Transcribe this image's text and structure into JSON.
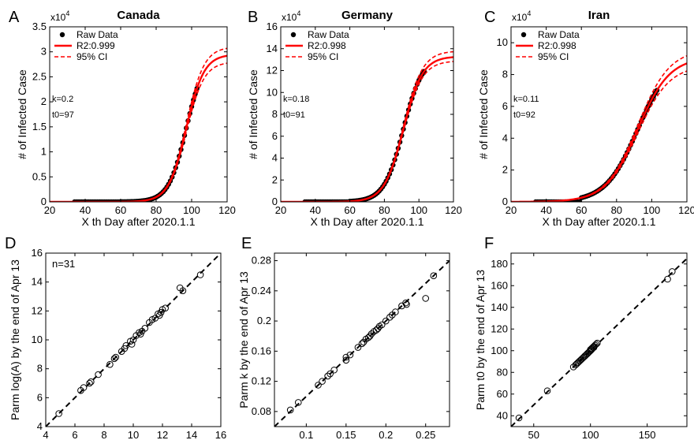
{
  "chart_data": [
    {
      "panel": "A",
      "type": "line",
      "title": "Canada",
      "xlabel": "X th Day after 2020.1.1",
      "ylabel": "# of Infected Case",
      "xlim": [
        20,
        120
      ],
      "ylim": [
        0,
        35000
      ],
      "xticks": [
        "20",
        "40",
        "60",
        "80",
        "100",
        "120"
      ],
      "yticks": [
        "0",
        "0.5",
        "1",
        "1.5",
        "2",
        "2.5",
        "3",
        "3.5"
      ],
      "y_multiplier_base": "x10",
      "y_multiplier_exp": "4",
      "legend": [
        "Raw Data",
        "R2:0.999",
        "95% CI"
      ],
      "legend_position": "top-left",
      "notes": [
        "k=0.2",
        "t0=97"
      ],
      "fit": {
        "A": 29500,
        "k": 0.2,
        "t0": 97
      },
      "ci_upper": {
        "A": 31000,
        "k": 0.2,
        "t0": 97
      },
      "ci_lower": {
        "A": 28000,
        "k": 0.2,
        "t0": 97
      },
      "raw_x_range": [
        34,
        103
      ],
      "colors": {
        "fit": "#ff0000",
        "raw": "#000000"
      }
    },
    {
      "panel": "B",
      "type": "line",
      "title": "Germany",
      "xlabel": "X th Day after 2020.1.1",
      "ylabel": "# of Infected Case",
      "xlim": [
        20,
        120
      ],
      "ylim": [
        0,
        160000
      ],
      "xticks": [
        "20",
        "40",
        "60",
        "80",
        "100",
        "120"
      ],
      "yticks": [
        "0",
        "2",
        "4",
        "6",
        "8",
        "10",
        "12",
        "14",
        "16"
      ],
      "y_multiplier_base": "x10",
      "y_multiplier_exp": "4",
      "legend": [
        "Raw Data",
        "R2:0.998",
        "95% CI"
      ],
      "legend_position": "top-left",
      "notes": [
        "k=0.18",
        "t0=91"
      ],
      "fit": {
        "A": 133000,
        "k": 0.18,
        "t0": 91
      },
      "ci_upper": {
        "A": 138000,
        "k": 0.18,
        "t0": 91
      },
      "ci_lower": {
        "A": 129000,
        "k": 0.18,
        "t0": 91
      },
      "raw_x_range": [
        34,
        103
      ],
      "colors": {
        "fit": "#ff0000",
        "raw": "#000000"
      }
    },
    {
      "panel": "C",
      "type": "line",
      "title": "Iran",
      "xlabel": "X th Day after 2020.1.1",
      "ylabel": "# of Infected Case",
      "xlim": [
        20,
        120
      ],
      "ylim": [
        0,
        110000
      ],
      "xticks": [
        "20",
        "40",
        "60",
        "80",
        "100",
        "120"
      ],
      "yticks": [
        "0",
        "2",
        "4",
        "6",
        "8",
        "10"
      ],
      "y_multiplier_base": "x10",
      "y_multiplier_exp": "4",
      "legend": [
        "Raw Data",
        "R2:0.998",
        "95% CI"
      ],
      "legend_position": "top-left",
      "notes": [
        "k=0.11",
        "t0=92"
      ],
      "fit": {
        "A": 91000,
        "k": 0.11,
        "t0": 92
      },
      "ci_upper": {
        "A": 96000,
        "k": 0.11,
        "t0": 92
      },
      "ci_lower": {
        "A": 86000,
        "k": 0.11,
        "t0": 92
      },
      "raw_x_range": [
        34,
        103
      ],
      "colors": {
        "fit": "#ff0000",
        "raw": "#000000"
      }
    },
    {
      "panel": "D",
      "type": "scatter",
      "xlabel": "Parm log(A) by the end of Apr 12",
      "ylabel": "Parm log(A) by the end of Apr 13",
      "xlim": [
        4,
        16
      ],
      "ylim": [
        4,
        16
      ],
      "xticks": [
        "4",
        "6",
        "8",
        "10",
        "12",
        "14",
        "16"
      ],
      "yticks": [
        "4",
        "6",
        "8",
        "10",
        "12",
        "14",
        "16"
      ],
      "notes": [
        "n=31"
      ],
      "x": [
        4.9,
        6.4,
        6.6,
        7.0,
        7.1,
        7.6,
        8.4,
        8.7,
        8.8,
        9.2,
        9.4,
        9.5,
        9.8,
        10.0,
        10.2,
        10.4,
        10.6,
        10.8,
        11.1,
        11.3,
        11.5,
        11.7,
        11.9,
        12.0,
        12.2,
        13.2,
        13.4,
        14.6,
        9.9,
        10.5,
        11.8
      ],
      "y": [
        4.9,
        6.5,
        6.7,
        7.0,
        7.1,
        7.6,
        8.3,
        8.7,
        8.8,
        9.2,
        9.4,
        9.6,
        9.9,
        10.0,
        10.3,
        10.5,
        10.6,
        10.8,
        11.2,
        11.4,
        11.5,
        11.8,
        11.9,
        12.1,
        12.2,
        13.6,
        13.4,
        14.5,
        9.7,
        10.4,
        11.7
      ],
      "reference_line": "y=x",
      "colors": {
        "marker": "#000000"
      }
    },
    {
      "panel": "E",
      "type": "scatter",
      "xlabel": "Parm k by the end of Apr 12",
      "ylabel": "Parm k by the end of Apr 13",
      "xlim": [
        0.06,
        0.28
      ],
      "ylim": [
        0.06,
        0.29
      ],
      "xticks": [
        "0.1",
        "0.15",
        "0.2",
        "0.25"
      ],
      "ytick_values": [
        0.08,
        0.12,
        0.16,
        0.2,
        0.24,
        0.28
      ],
      "yticks": [
        "0.08",
        "0.12",
        "0.16",
        "0.2",
        "0.24",
        "0.28"
      ],
      "xtick_values": [
        0.1,
        0.15,
        0.2,
        0.25
      ],
      "x": [
        0.08,
        0.09,
        0.115,
        0.12,
        0.127,
        0.13,
        0.135,
        0.15,
        0.155,
        0.165,
        0.17,
        0.172,
        0.175,
        0.178,
        0.18,
        0.182,
        0.185,
        0.188,
        0.19,
        0.192,
        0.195,
        0.2,
        0.205,
        0.208,
        0.212,
        0.22,
        0.225,
        0.226,
        0.25,
        0.26,
        0.15
      ],
      "y": [
        0.082,
        0.092,
        0.115,
        0.12,
        0.127,
        0.13,
        0.135,
        0.148,
        0.155,
        0.165,
        0.17,
        0.172,
        0.176,
        0.178,
        0.18,
        0.183,
        0.186,
        0.188,
        0.19,
        0.193,
        0.195,
        0.2,
        0.205,
        0.208,
        0.212,
        0.22,
        0.224,
        0.222,
        0.23,
        0.26,
        0.152
      ],
      "reference_line": "y=x",
      "colors": {
        "marker": "#000000"
      }
    },
    {
      "panel": "F",
      "type": "scatter",
      "xlabel": "Parm t0 by the end of Apr 12",
      "ylabel": "Parm t0 by the end of Apr 13",
      "xlim": [
        30,
        185
      ],
      "ylim": [
        30,
        190
      ],
      "xticks": [
        "50",
        "100",
        "150"
      ],
      "xtick_values": [
        50,
        100,
        150
      ],
      "yticks": [
        "40",
        "60",
        "80",
        "100",
        "120",
        "140",
        "160",
        "180"
      ],
      "ytick_values": [
        40,
        60,
        80,
        100,
        120,
        140,
        160,
        180
      ],
      "x": [
        37,
        62,
        85,
        87,
        88,
        90,
        91,
        92,
        93,
        94,
        95,
        96,
        97,
        98,
        99,
        100,
        100,
        101,
        102,
        103,
        104,
        105,
        106,
        168,
        172,
        89,
        95,
        98,
        101,
        103,
        97
      ],
      "y": [
        38,
        63,
        85,
        87,
        88,
        90,
        91,
        92,
        93,
        94,
        95,
        96,
        97,
        98,
        99,
        100,
        101,
        102,
        103,
        104,
        105,
        106,
        107,
        166,
        173,
        89,
        95,
        98,
        101,
        103,
        97
      ],
      "reference_line": "y=x",
      "colors": {
        "marker": "#000000"
      }
    }
  ]
}
